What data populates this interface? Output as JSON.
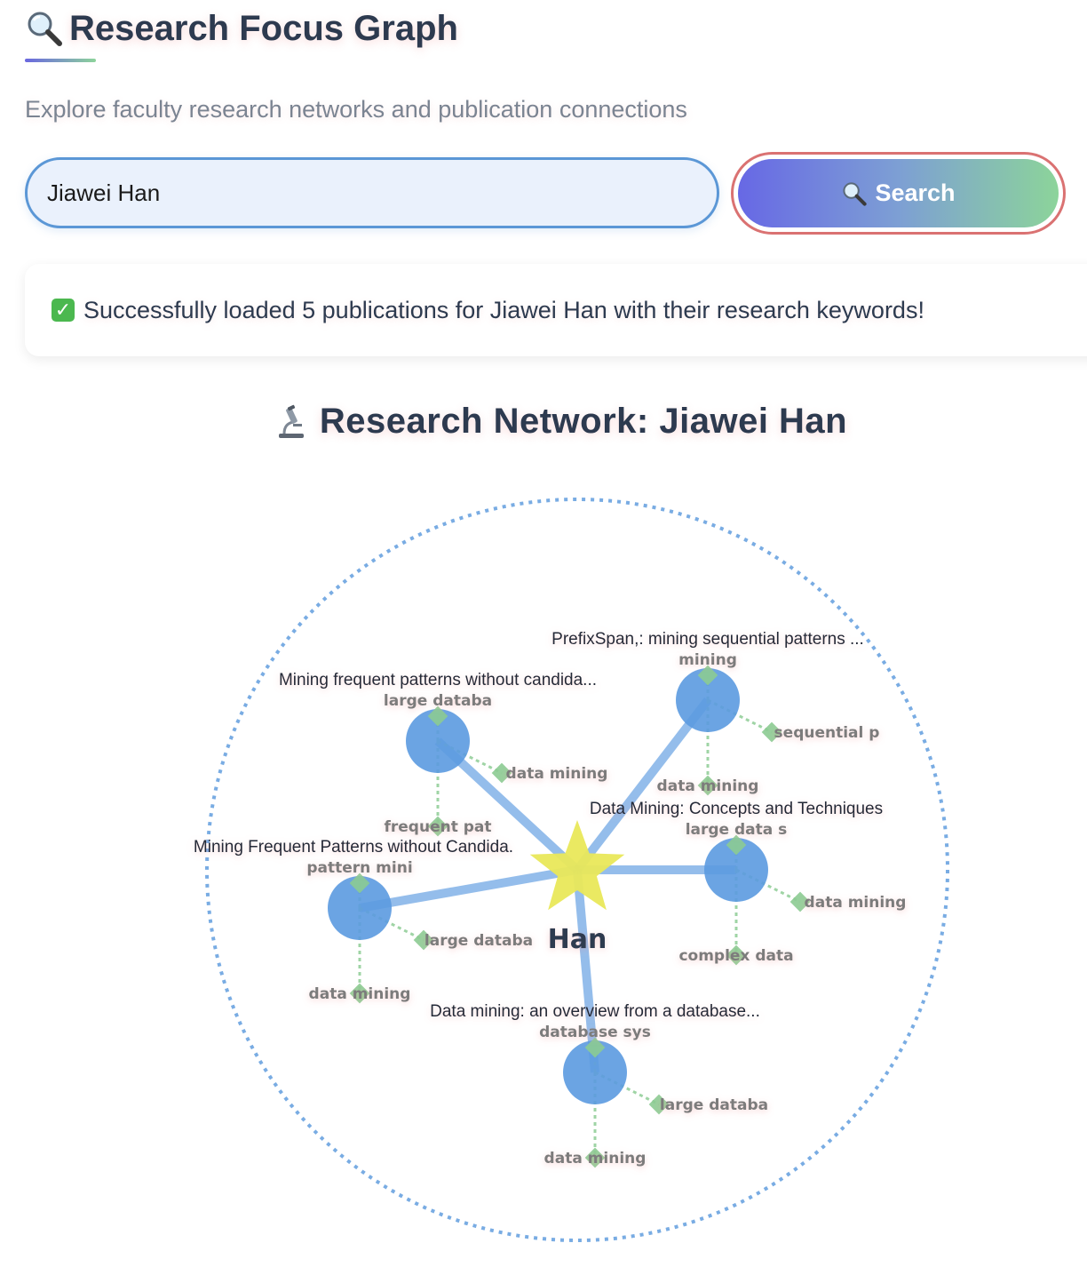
{
  "header": {
    "title": "Research Focus Graph",
    "icon": "magnifier-icon",
    "subtitle": "Explore faculty research networks and publication connections"
  },
  "search": {
    "value": "Jiawei Han",
    "button_label": "Search",
    "button_icon": "magnifier-icon"
  },
  "status": {
    "icon": "check-icon",
    "message": "Successfully loaded 5 publications for Jiawei Han with their research keywords!"
  },
  "network": {
    "title": "Research Network: Jiawei Han",
    "icon": "microscope-icon",
    "center_label": "Han",
    "colors": {
      "boundary": "#79ace3",
      "publication": "#5b9ae0",
      "center": "#e9e85a",
      "keyword": "#8ccb92",
      "keyword_link": "#9fd4a5"
    },
    "publications": [
      {
        "title": "PrefixSpan,: mining sequential patterns ...",
        "keywords": [
          "mining",
          "sequential p",
          "data mining"
        ]
      },
      {
        "title": "Mining frequent patterns without candida...",
        "keywords": [
          "large databa",
          "data mining",
          "frequent pat"
        ]
      },
      {
        "title": "Data Mining: Concepts and Techniques",
        "keywords": [
          "large data s",
          "data mining",
          "complex data"
        ]
      },
      {
        "title": "Mining Frequent Patterns without Candida.",
        "keywords": [
          "pattern mini",
          "large databa",
          "data mining"
        ]
      },
      {
        "title": "Data mining: an overview from a database...",
        "keywords": [
          "database sys",
          "large databa",
          "data mining"
        ]
      }
    ]
  }
}
